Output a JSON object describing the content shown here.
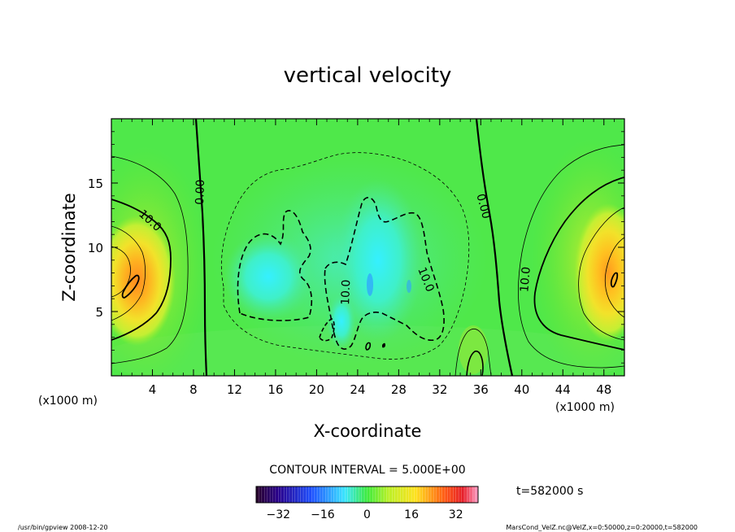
{
  "chart_data": {
    "type": "heatmap",
    "title": "vertical velocity",
    "xlabel": "X-coordinate",
    "ylabel": "Z-coordinate",
    "x_unit_left": "(x1000 m)",
    "x_unit_right": "(x1000 m)",
    "xlim": [
      0,
      50
    ],
    "ylim": [
      0,
      20
    ],
    "x_ticks": [
      "4",
      "8",
      "12",
      "16",
      "20",
      "24",
      "28",
      "32",
      "36",
      "40",
      "44",
      "48"
    ],
    "x_tick_values": [
      4,
      8,
      12,
      16,
      20,
      24,
      28,
      32,
      36,
      40,
      44,
      48
    ],
    "y_ticks": [
      "5",
      "10",
      "15"
    ],
    "y_tick_values": [
      5,
      10,
      15
    ],
    "contour_interval_text": "CONTOUR INTERVAL = 5.000E+00",
    "contour_labels": [
      {
        "text": "0.00",
        "x": 8.6,
        "z": 14.3,
        "angle": -88
      },
      {
        "text": "0.00",
        "x": 36.3,
        "z": 13.2,
        "angle": 75
      },
      {
        "text": "10.0",
        "x": 3.8,
        "z": 12.1,
        "angle": 42
      },
      {
        "text": "10.0",
        "x": 22.8,
        "z": 6.5,
        "angle": -88
      },
      {
        "text": "10.0",
        "x": 30.7,
        "z": 7.5,
        "angle": 68
      },
      {
        "text": "10.0",
        "x": 40.3,
        "z": 7.5,
        "angle": -85
      }
    ],
    "colorbar": {
      "range": [
        -40,
        40
      ],
      "ticks": [
        "-32",
        "-16",
        "0",
        "16",
        "32"
      ],
      "tick_values": [
        -32,
        -16,
        0,
        16,
        32
      ]
    },
    "time_label": "t=582000 s",
    "grid": false
  },
  "footer": {
    "left": "/usr/bin/gpview  2008-12-20",
    "right": "MarsCond_VelZ.nc@VelZ,x=0:50000,z=0:20000,t=582000"
  }
}
